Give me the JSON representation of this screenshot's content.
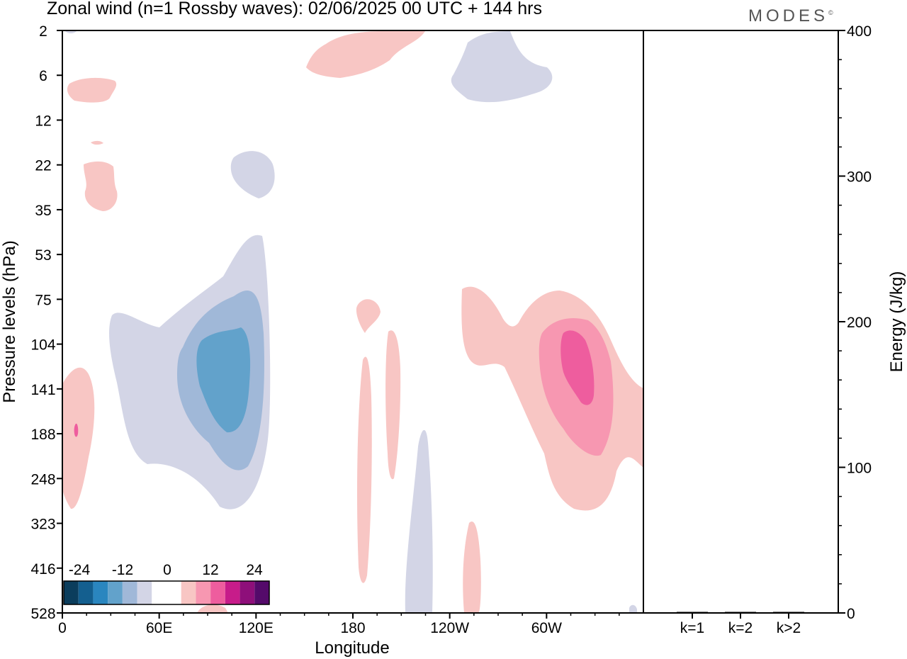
{
  "header": {
    "title": "Zonal wind (n=1 Rossby waves):  02/06/2025  00 UTC  + 144 hrs",
    "brand": "MODES",
    "brand_mark": "©"
  },
  "chart_data": [
    {
      "type": "heatmap",
      "title": "Zonal wind (n=1 Rossby waves):  02/06/2025  00 UTC  + 144 hrs",
      "xlabel": "Longitude",
      "ylabel": "Pressure levels (hPa)",
      "x_ticks": [
        "0",
        "60E",
        "120E",
        "180",
        "120W",
        "60W"
      ],
      "y_ticks": [
        "2",
        "6",
        "12",
        "22",
        "35",
        "53",
        "75",
        "104",
        "141",
        "188",
        "248",
        "323",
        "416",
        "528"
      ],
      "xlim": [
        0,
        360
      ],
      "colorbar": {
        "labels": [
          "-24",
          "-12",
          "0",
          "12",
          "24"
        ],
        "colors": [
          "#0b3d5c",
          "#145f8f",
          "#2a86bf",
          "#62a2cb",
          "#a0b8d8",
          "#d3d5e6",
          "#ffffff",
          "#ffffff",
          "#f8c6c4",
          "#f797b1",
          "#ee5d9e",
          "#c71c8a",
          "#8e0f7a",
          "#540a6a"
        ]
      },
      "features": [
        {
          "sign": "negative",
          "level": 3,
          "center_lon": 102,
          "center_hPa": 141,
          "note": "core below -12"
        },
        {
          "sign": "positive",
          "level": 3,
          "center_lon": 328,
          "center_hPa": 141,
          "note": "core above 12"
        },
        {
          "sign": "negative",
          "level": 1,
          "center_lon": 105,
          "center_hPa": 22
        },
        {
          "sign": "negative",
          "level": 1,
          "center_lon": 268,
          "center_hPa": 6
        },
        {
          "sign": "positive",
          "level": 1,
          "center_lon": 200,
          "center_hPa": 2
        },
        {
          "sign": "negative",
          "level": 1,
          "center_lon": 225,
          "center_hPa": 416
        },
        {
          "sign": "positive",
          "level": 1,
          "center_lon": 10,
          "center_hPa": 188
        }
      ]
    },
    {
      "type": "bar",
      "ylabel": "Energy (J/kg)",
      "categories": [
        "k=1",
        "k=2",
        "k>2"
      ],
      "values": [
        0.4,
        0.2,
        0.2
      ],
      "ylim": [
        0,
        400
      ],
      "y_ticks": [
        "0",
        "100",
        "200",
        "300",
        "400"
      ]
    }
  ]
}
